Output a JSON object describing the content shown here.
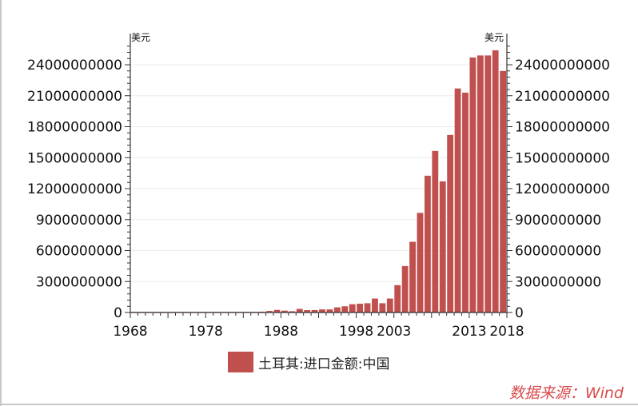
{
  "chart_data": {
    "type": "bar",
    "unit_left": "美元",
    "unit_right": "美元",
    "x_tick_labels": [
      "1968",
      "1978",
      "1988",
      "1998",
      "2003",
      "2013",
      "2018"
    ],
    "y_tick_labels": [
      "0",
      "3000000000",
      "6000000000",
      "9000000000",
      "12000000000",
      "15000000000",
      "18000000000",
      "21000000000",
      "24000000000"
    ],
    "xlim": [
      1968,
      2018
    ],
    "ylim": [
      0,
      24000000000
    ],
    "grid": true,
    "legend_position": "bottom",
    "color": "#c0504d",
    "series": [
      {
        "name": "土耳其:进口金额:中国",
        "x": [
          1968,
          1969,
          1970,
          1971,
          1972,
          1973,
          1974,
          1975,
          1976,
          1977,
          1978,
          1979,
          1980,
          1981,
          1982,
          1983,
          1984,
          1985,
          1986,
          1987,
          1988,
          1989,
          1990,
          1991,
          1992,
          1993,
          1994,
          1995,
          1996,
          1997,
          1998,
          1999,
          2000,
          2001,
          2002,
          2003,
          2004,
          2005,
          2006,
          2007,
          2008,
          2009,
          2010,
          2011,
          2012,
          2013,
          2014,
          2015,
          2016,
          2017
        ],
        "values": [
          5000000,
          5000000,
          5000000,
          5000000,
          5000000,
          5000000,
          5000000,
          5000000,
          5000000,
          5000000,
          5000000,
          5000000,
          10000000,
          20000000,
          30000000,
          50000000,
          60000000,
          80000000,
          150000000,
          250000000,
          180000000,
          120000000,
          350000000,
          230000000,
          240000000,
          300000000,
          300000000,
          500000000,
          600000000,
          800000000,
          850000000,
          900000000,
          1350000000,
          900000000,
          1350000000,
          2650000000,
          4500000000,
          6850000000,
          9650000000,
          13250000000,
          15650000000,
          12700000000,
          17200000000,
          21700000000,
          21300000000,
          24700000000,
          24900000000,
          24900000000,
          25400000000,
          23400000000
        ]
      }
    ]
  },
  "source_label": "数据来源：Wind",
  "source_color": "#d84a4a"
}
